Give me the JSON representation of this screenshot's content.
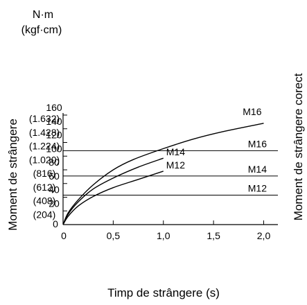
{
  "chart_data": {
    "type": "line",
    "unit_primary": "N·m",
    "unit_secondary": "(kgf·cm)",
    "ylabel": "Moment de strângere",
    "ylabel_right": "Moment de strângere corect",
    "xlabel": "Timp de strângere (s)",
    "x_ticks": [
      {
        "value": 0,
        "label": "0"
      },
      {
        "value": 0.5,
        "label": "0,5"
      },
      {
        "value": 1.0,
        "label": "1,0"
      },
      {
        "value": 1.5,
        "label": "1,5"
      },
      {
        "value": 2.0,
        "label": "2,0"
      }
    ],
    "y_ticks": [
      {
        "value": 0,
        "label": "0",
        "sub": ""
      },
      {
        "value": 20,
        "label": "20",
        "sub": "(204)"
      },
      {
        "value": 40,
        "label": "40",
        "sub": "(408)"
      },
      {
        "value": 60,
        "label": "60",
        "sub": "(612)"
      },
      {
        "value": 80,
        "label": "80",
        "sub": "(816)"
      },
      {
        "value": 100,
        "label": "100",
        "sub": "(1.020)"
      },
      {
        "value": 120,
        "label": "120",
        "sub": "(1.224)"
      },
      {
        "value": 140,
        "label": "140",
        "sub": "(1.428)"
      },
      {
        "value": 160,
        "label": "160",
        "sub": "(1.632)"
      }
    ],
    "xlim": [
      0,
      2.2
    ],
    "ylim": [
      0,
      160
    ],
    "series": [
      {
        "name": "M16",
        "x": [
          0,
          0.05,
          0.15,
          0.3,
          0.5,
          0.7,
          1.0,
          1.3,
          1.6,
          2.0
        ],
        "y": [
          0,
          17,
          36,
          58,
          80,
          95,
          111,
          125,
          136,
          148
        ]
      },
      {
        "name": "M14",
        "x": [
          0,
          0.05,
          0.15,
          0.3,
          0.5,
          0.75,
          1.0
        ],
        "y": [
          0,
          15,
          33,
          52,
          68,
          84,
          97
        ]
      },
      {
        "name": "M12",
        "x": [
          0,
          0.05,
          0.15,
          0.3,
          0.5,
          0.75,
          1.0
        ],
        "y": [
          0,
          12,
          27,
          41,
          54,
          66,
          78
        ]
      }
    ],
    "reference_lines": [
      {
        "label": "M16",
        "y": 108
      },
      {
        "label": "M14",
        "y": 71
      },
      {
        "label": "M12",
        "y": 43
      }
    ]
  }
}
